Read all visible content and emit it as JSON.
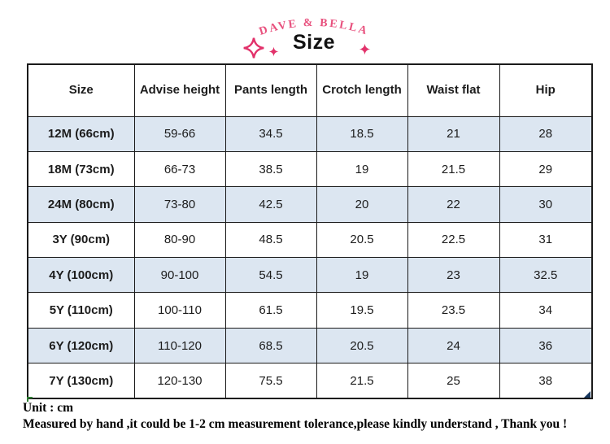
{
  "header": {
    "brand": "DAVE  &  BELLA",
    "title": "Size"
  },
  "table": {
    "columns": [
      "Size",
      "Advise height",
      "Pants length",
      "Crotch length",
      "Waist flat",
      "Hip"
    ],
    "rows": [
      [
        "12M (66cm)",
        "59-66",
        "34.5",
        "18.5",
        "21",
        "28"
      ],
      [
        "18M (73cm)",
        "66-73",
        "38.5",
        "19",
        "21.5",
        "29"
      ],
      [
        "24M (80cm)",
        "73-80",
        "42.5",
        "20",
        "22",
        "30"
      ],
      [
        "3Y (90cm)",
        "80-90",
        "48.5",
        "20.5",
        "22.5",
        "31"
      ],
      [
        "4Y (100cm)",
        "90-100",
        "54.5",
        "19",
        "23",
        "32.5"
      ],
      [
        "5Y (110cm)",
        "100-110",
        "61.5",
        "19.5",
        "23.5",
        "34"
      ],
      [
        "6Y (120cm)",
        "110-120",
        "68.5",
        "20.5",
        "24",
        "36"
      ],
      [
        "7Y (130cm)",
        "120-130",
        "75.5",
        "21.5",
        "25",
        "38"
      ]
    ]
  },
  "footer": {
    "unit": "Unit : cm",
    "note": "Measured by hand ,it could be 1-2 cm measurement tolerance,please kindly understand , Thank you !"
  },
  "colors": {
    "brand_pink": "#e8517e",
    "sparkle_pink": "#e2326b",
    "row_alt_blue": "#dce6f1",
    "border_black": "#1a1a1a",
    "handle_blue": "#17375e",
    "corner_green": "#2e7d32"
  }
}
